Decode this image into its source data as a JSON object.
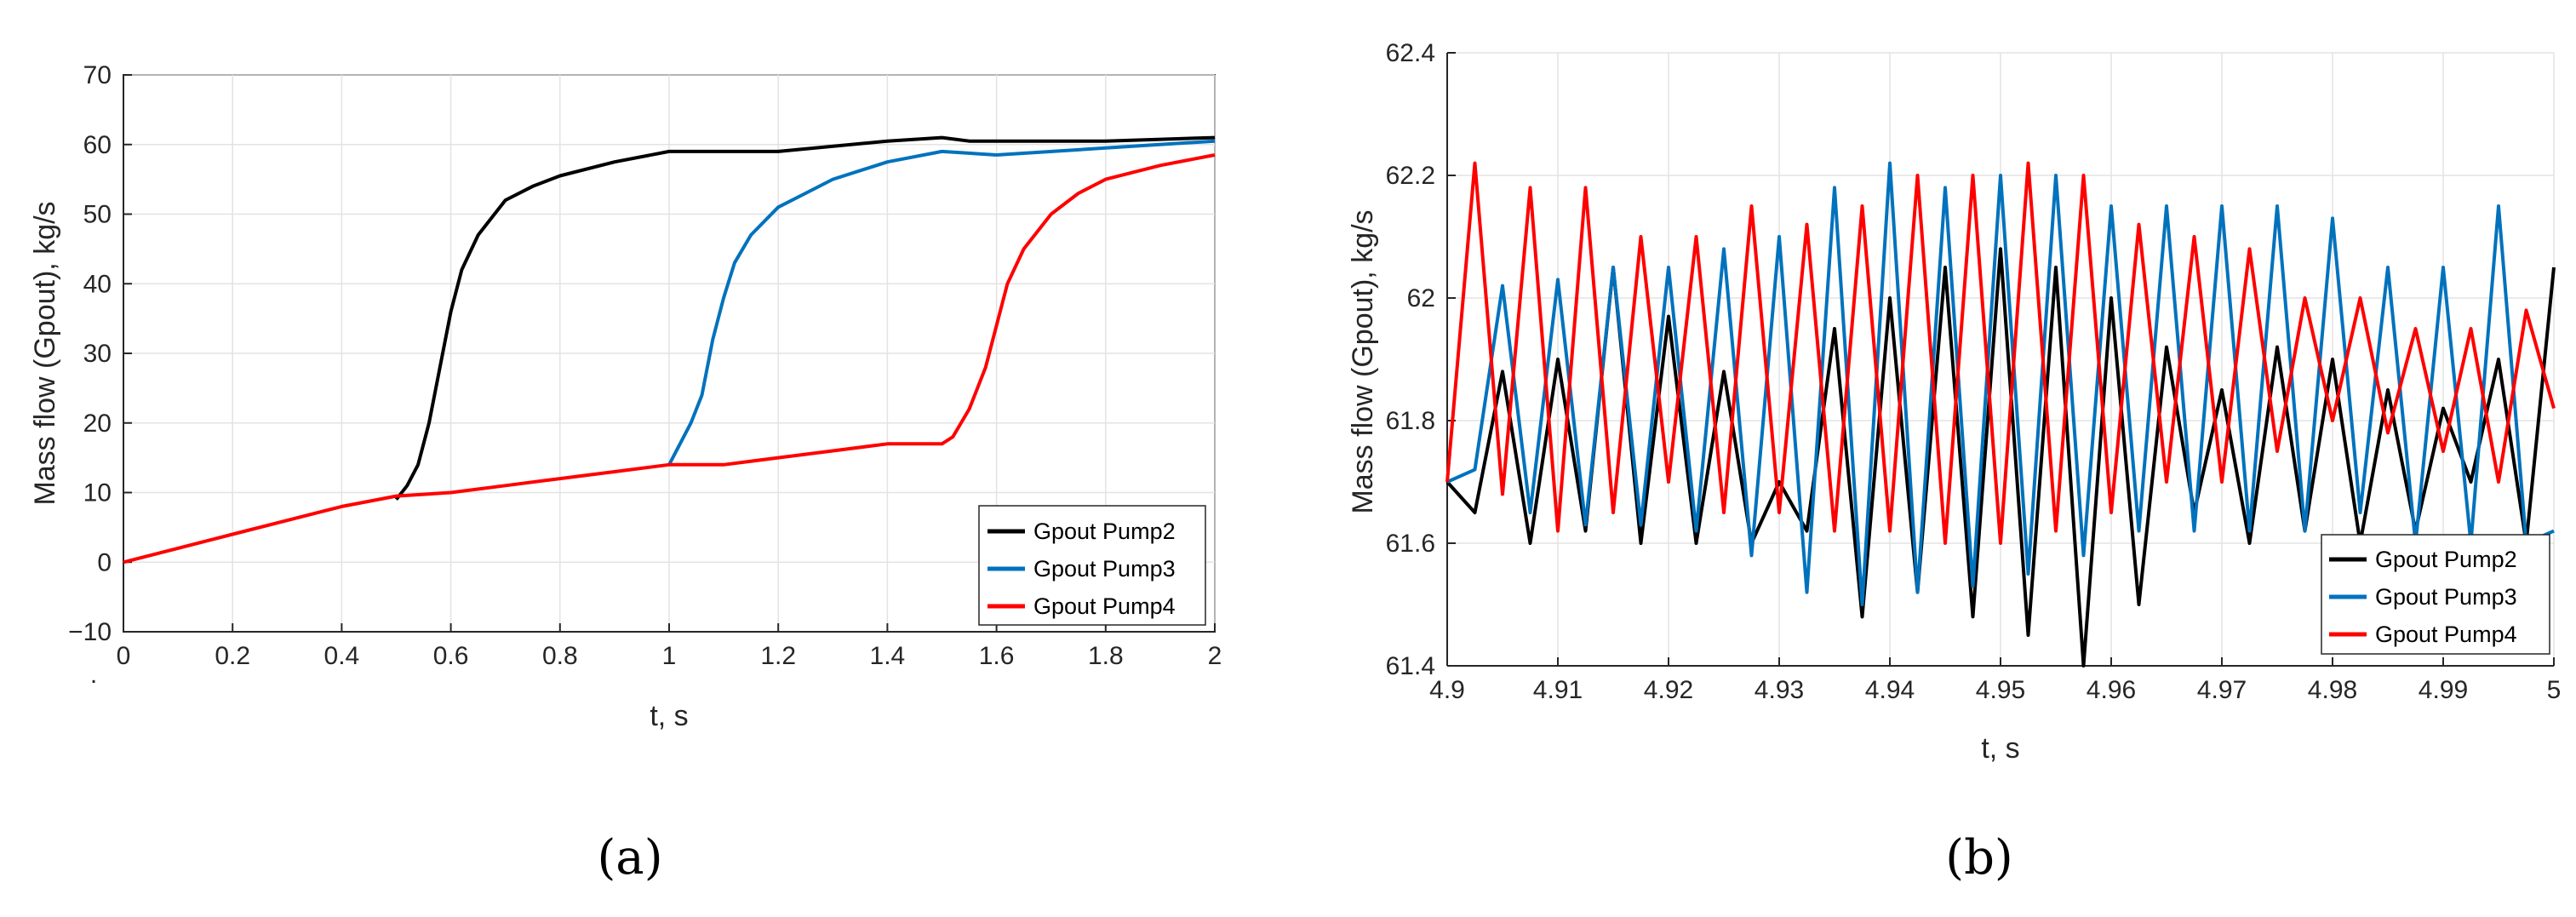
{
  "chart_data": [
    {
      "type": "line",
      "panel_label": "(a)",
      "xlabel": "t, s",
      "ylabel": "Mass flow (Gpout),  kg/s",
      "xlim": [
        0,
        2
      ],
      "ylim": [
        -10,
        70
      ],
      "x_ticks": [
        "0",
        "0.2",
        "0.4",
        "0.6",
        "0.8",
        "1",
        "1.2",
        "1.4",
        "1.6",
        "1.8",
        "2"
      ],
      "y_ticks": [
        "−10",
        "0",
        "10",
        "20",
        "30",
        "40",
        "50",
        "60",
        "70"
      ],
      "origin_mark": ".",
      "grid": true,
      "legend_position": "bottom-right",
      "series": [
        {
          "name": "Gpout Pump2",
          "color": "#000000",
          "x": [
            0.5,
            0.52,
            0.54,
            0.56,
            0.58,
            0.6,
            0.62,
            0.65,
            0.7,
            0.75,
            0.8,
            0.9,
            1.0,
            1.2,
            1.4,
            1.5,
            1.55,
            1.6,
            1.8,
            2.0
          ],
          "values": [
            9,
            11,
            14,
            20,
            28,
            36,
            42,
            47,
            52,
            54,
            55.5,
            57.5,
            59,
            59,
            60.5,
            61,
            60.5,
            60.5,
            60.5,
            61
          ]
        },
        {
          "name": "Gpout Pump3",
          "color": "#0072BD",
          "x": [
            1.0,
            1.02,
            1.04,
            1.06,
            1.08,
            1.1,
            1.12,
            1.15,
            1.2,
            1.25,
            1.3,
            1.4,
            1.5,
            1.6,
            1.8,
            2.0
          ],
          "values": [
            14,
            17,
            20,
            24,
            32,
            38,
            43,
            47,
            51,
            53,
            55,
            57.5,
            59,
            58.5,
            59.5,
            60.5
          ]
        },
        {
          "name": "Gpout Pump4",
          "color": "#FF0000",
          "x": [
            0,
            0.1,
            0.2,
            0.3,
            0.4,
            0.5,
            0.6,
            0.7,
            0.8,
            0.9,
            1.0,
            1.1,
            1.2,
            1.3,
            1.4,
            1.5,
            1.52,
            1.55,
            1.58,
            1.6,
            1.62,
            1.65,
            1.7,
            1.75,
            1.8,
            1.9,
            2.0
          ],
          "values": [
            0,
            2,
            4,
            6,
            8,
            9.5,
            10,
            11,
            12,
            13,
            14,
            14,
            15,
            16,
            17,
            17,
            18,
            22,
            28,
            34,
            40,
            45,
            50,
            53,
            55,
            57,
            58.5
          ]
        }
      ]
    },
    {
      "type": "line",
      "panel_label": "(b)",
      "xlabel": "t, s",
      "ylabel": "Mass flow (Gpout),  kg/s",
      "xlim": [
        4.9,
        5.0
      ],
      "ylim": [
        61.4,
        62.4
      ],
      "x_ticks": [
        "4.9",
        "4.91",
        "4.92",
        "4.93",
        "4.94",
        "4.95",
        "4.96",
        "4.97",
        "4.98",
        "4.99",
        "5"
      ],
      "y_ticks": [
        "61.4",
        "61.6",
        "61.8",
        "62",
        "62.2",
        "62.4"
      ],
      "grid": true,
      "legend_position": "bottom-right",
      "series": [
        {
          "name": "Gpout Pump2",
          "color": "#000000",
          "x": [
            4.9,
            4.9025,
            4.905,
            4.9075,
            4.91,
            4.9125,
            4.915,
            4.9175,
            4.92,
            4.9225,
            4.925,
            4.9275,
            4.93,
            4.9325,
            4.935,
            4.9375,
            4.94,
            4.9425,
            4.945,
            4.9475,
            4.95,
            4.9525,
            4.955,
            4.9575,
            4.96,
            4.9625,
            4.965,
            4.9675,
            4.97,
            4.9725,
            4.975,
            4.9775,
            4.98,
            4.9825,
            4.985,
            4.9875,
            4.99,
            4.9925,
            4.995,
            4.9975,
            5.0
          ],
          "values": [
            61.7,
            61.65,
            61.88,
            61.6,
            61.9,
            61.62,
            62.05,
            61.6,
            61.97,
            61.6,
            61.88,
            61.6,
            61.7,
            61.62,
            61.95,
            61.48,
            62.0,
            61.52,
            62.05,
            61.48,
            62.08,
            61.45,
            62.05,
            61.4,
            62.0,
            61.5,
            61.92,
            61.65,
            61.85,
            61.6,
            61.92,
            61.62,
            61.9,
            61.6,
            61.85,
            61.62,
            61.82,
            61.7,
            61.9,
            61.6,
            62.05
          ]
        },
        {
          "name": "Gpout Pump3",
          "color": "#0072BD",
          "x": [
            4.9,
            4.9025,
            4.905,
            4.9075,
            4.91,
            4.9125,
            4.915,
            4.9175,
            4.92,
            4.9225,
            4.925,
            4.9275,
            4.93,
            4.9325,
            4.935,
            4.9375,
            4.94,
            4.9425,
            4.945,
            4.9475,
            4.95,
            4.9525,
            4.955,
            4.9575,
            4.96,
            4.9625,
            4.965,
            4.9675,
            4.97,
            4.9725,
            4.975,
            4.9775,
            4.98,
            4.9825,
            4.985,
            4.9875,
            4.99,
            4.9925,
            4.995,
            4.9975,
            5.0
          ],
          "values": [
            61.7,
            61.72,
            62.02,
            61.65,
            62.03,
            61.63,
            62.05,
            61.63,
            62.05,
            61.62,
            62.08,
            61.58,
            62.1,
            61.52,
            62.18,
            61.5,
            62.22,
            61.52,
            62.18,
            61.53,
            62.2,
            61.55,
            62.2,
            61.58,
            62.15,
            61.62,
            62.15,
            61.62,
            62.15,
            61.62,
            62.15,
            61.62,
            62.13,
            61.65,
            62.05,
            61.6,
            62.05,
            61.6,
            62.15,
            61.6,
            61.62
          ]
        },
        {
          "name": "Gpout Pump4",
          "color": "#FF0000",
          "x": [
            4.9,
            4.9025,
            4.905,
            4.9075,
            4.91,
            4.9125,
            4.915,
            4.9175,
            4.92,
            4.9225,
            4.925,
            4.9275,
            4.93,
            4.9325,
            4.935,
            4.9375,
            4.94,
            4.9425,
            4.945,
            4.9475,
            4.95,
            4.9525,
            4.955,
            4.9575,
            4.96,
            4.9625,
            4.965,
            4.9675,
            4.97,
            4.9725,
            4.975,
            4.9775,
            4.98,
            4.9825,
            4.985,
            4.9875,
            4.99,
            4.9925,
            4.995,
            4.9975,
            5.0
          ],
          "values": [
            61.7,
            62.22,
            61.68,
            62.18,
            61.62,
            62.18,
            61.65,
            62.1,
            61.7,
            62.1,
            61.65,
            62.15,
            61.65,
            62.12,
            61.62,
            62.15,
            61.62,
            62.2,
            61.6,
            62.2,
            61.6,
            62.22,
            61.62,
            62.2,
            61.65,
            62.12,
            61.7,
            62.1,
            61.7,
            62.08,
            61.75,
            62.0,
            61.8,
            62.0,
            61.78,
            61.95,
            61.75,
            61.95,
            61.7,
            61.98,
            61.82
          ]
        }
      ]
    }
  ]
}
